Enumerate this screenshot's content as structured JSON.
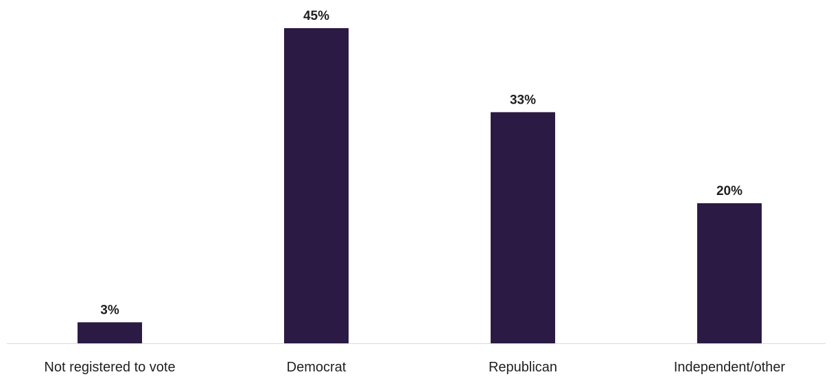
{
  "chart_data": {
    "type": "bar",
    "categories": [
      "Not registered to vote",
      "Democrat",
      "Republican",
      "Independent/other"
    ],
    "values": [
      3,
      45,
      33,
      20
    ],
    "value_suffix": "%",
    "data_labels": [
      "3%",
      "45%",
      "33%",
      "20%"
    ],
    "title": "",
    "xlabel": "",
    "ylabel": "",
    "ylim": [
      0,
      45
    ],
    "grid": false,
    "legend": "none",
    "bar_color": "#2b1a44",
    "axis_color": "#d9d9d9"
  }
}
